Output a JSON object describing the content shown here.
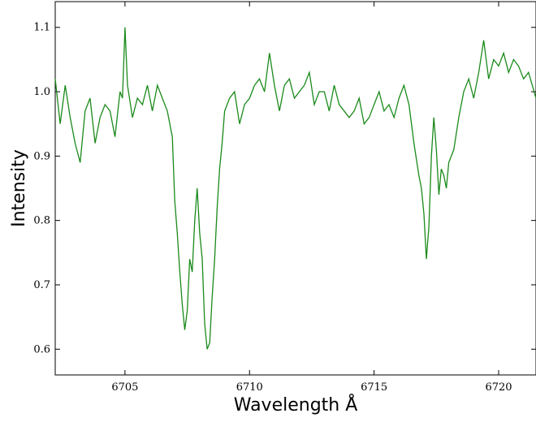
{
  "chart_data": {
    "type": "line",
    "xlabel": "Wavelength Å",
    "ylabel": "Intensity",
    "xlim": [
      6702.2,
      6721.5
    ],
    "ylim": [
      0.56,
      1.14
    ],
    "xticks": [
      6705,
      6710,
      6715,
      6720
    ],
    "yticks": [
      0.6,
      0.7,
      0.8,
      0.9,
      1.0,
      1.1
    ],
    "xtick_labels": [
      "6705",
      "6710",
      "6715",
      "6720"
    ],
    "ytick_labels": [
      "0.6",
      "0.7",
      "0.8",
      "0.9",
      "1.0",
      "1.1"
    ],
    "grid": false,
    "line_color": "#1a8a1a",
    "series": [
      {
        "x": [
          6702.2,
          6702.4,
          6702.6,
          6702.8,
          6703.0,
          6703.2,
          6703.4,
          6703.6,
          6703.8,
          6704.0,
          6704.2,
          6704.4,
          6704.6,
          6704.8,
          6704.9,
          6705.0,
          6705.1,
          6705.3,
          6705.5,
          6705.7,
          6705.9,
          6706.1,
          6706.3,
          6706.5,
          6706.7,
          6706.9,
          6707.0,
          6707.1,
          6707.2,
          6707.3,
          6707.4,
          6707.5,
          6707.6,
          6707.7,
          6707.8,
          6707.9,
          6708.0,
          6708.1,
          6708.2,
          6708.3,
          6708.4,
          6708.5,
          6708.6,
          6708.7,
          6708.8,
          6708.9,
          6709.0,
          6709.2,
          6709.4,
          6709.6,
          6709.8,
          6710.0,
          6710.2,
          6710.4,
          6710.6,
          6710.8,
          6711.0,
          6711.2,
          6711.4,
          6711.6,
          6711.8,
          6712.0,
          6712.2,
          6712.4,
          6712.6,
          6712.8,
          6713.0,
          6713.2,
          6713.4,
          6713.6,
          6713.8,
          6714.0,
          6714.2,
          6714.4,
          6714.6,
          6714.8,
          6715.0,
          6715.2,
          6715.4,
          6715.6,
          6715.8,
          6716.0,
          6716.2,
          6716.4,
          6716.6,
          6716.8,
          6716.9,
          6717.0,
          6717.1,
          6717.2,
          6717.3,
          6717.4,
          6717.5,
          6717.6,
          6717.7,
          6717.8,
          6717.9,
          6718.0,
          6718.2,
          6718.4,
          6718.6,
          6718.8,
          6719.0,
          6719.2,
          6719.4,
          6719.6,
          6719.8,
          6720.0,
          6720.2,
          6720.4,
          6720.6,
          6720.8,
          6721.0,
          6721.2,
          6721.5
        ],
        "y": [
          1.02,
          0.95,
          1.01,
          0.96,
          0.92,
          0.89,
          0.97,
          0.99,
          0.92,
          0.96,
          0.98,
          0.97,
          0.93,
          1.0,
          0.99,
          1.1,
          1.01,
          0.96,
          0.99,
          0.98,
          1.01,
          0.97,
          1.01,
          0.99,
          0.97,
          0.93,
          0.83,
          0.78,
          0.72,
          0.67,
          0.63,
          0.66,
          0.74,
          0.72,
          0.8,
          0.85,
          0.78,
          0.74,
          0.64,
          0.6,
          0.61,
          0.68,
          0.74,
          0.82,
          0.88,
          0.92,
          0.97,
          0.99,
          1.0,
          0.95,
          0.98,
          0.99,
          1.01,
          1.02,
          1.0,
          1.06,
          1.01,
          0.97,
          1.01,
          1.02,
          0.99,
          1.0,
          1.01,
          1.03,
          0.98,
          1.0,
          1.0,
          0.97,
          1.01,
          0.98,
          0.97,
          0.96,
          0.97,
          0.99,
          0.95,
          0.96,
          0.98,
          1.0,
          0.97,
          0.98,
          0.96,
          0.99,
          1.01,
          0.98,
          0.92,
          0.87,
          0.85,
          0.81,
          0.74,
          0.79,
          0.9,
          0.96,
          0.91,
          0.84,
          0.88,
          0.87,
          0.85,
          0.89,
          0.91,
          0.96,
          1.0,
          1.02,
          0.99,
          1.03,
          1.08,
          1.02,
          1.05,
          1.04,
          1.06,
          1.03,
          1.05,
          1.04,
          1.02,
          1.03,
          0.99
        ]
      }
    ]
  }
}
